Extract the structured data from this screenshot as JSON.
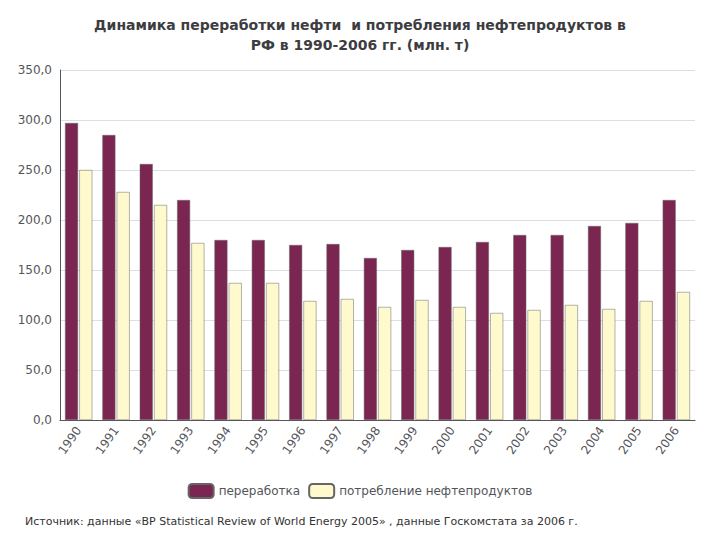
{
  "chart_data": {
    "type": "bar",
    "title": "Динамика переработки нефти  и потребления нефтепродуктов в\nРФ в 1990-2006 гг. (млн. т)",
    "categories": [
      "1990",
      "1991",
      "1992",
      "1993",
      "1994",
      "1995",
      "1996",
      "1997",
      "1998",
      "1999",
      "2000",
      "2001",
      "2002",
      "2003",
      "2004",
      "2005",
      "2006"
    ],
    "series": [
      {
        "name": "переработка",
        "color": "#7B2651",
        "values": [
          297,
          285,
          256,
          220,
          180,
          180,
          175,
          176,
          162,
          170,
          173,
          178,
          185,
          185,
          194,
          197,
          220
        ]
      },
      {
        "name": "потребление нефтепродуктов",
        "color": "#FFFACD",
        "values": [
          250,
          228,
          215,
          177,
          137,
          137,
          119,
          121,
          113,
          120,
          113,
          107,
          110,
          115,
          111,
          119,
          128
        ]
      }
    ],
    "ylim": [
      0,
      350
    ],
    "yticks": [
      {
        "value": 0,
        "label": "0,0"
      },
      {
        "value": 50,
        "label": "50,0"
      },
      {
        "value": 100,
        "label": "100,0"
      },
      {
        "value": 150,
        "label": "150,0"
      },
      {
        "value": 200,
        "label": "200,0"
      },
      {
        "value": 250,
        "label": "250,0"
      },
      {
        "value": 300,
        "label": "300,0"
      },
      {
        "value": 350,
        "label": "350,0"
      }
    ],
    "grid": true,
    "legend": "bottom",
    "annotation": "Источник: данные «BP Statistical Review of World Energy 2005» , данные Госкомстата за 2006 г."
  }
}
